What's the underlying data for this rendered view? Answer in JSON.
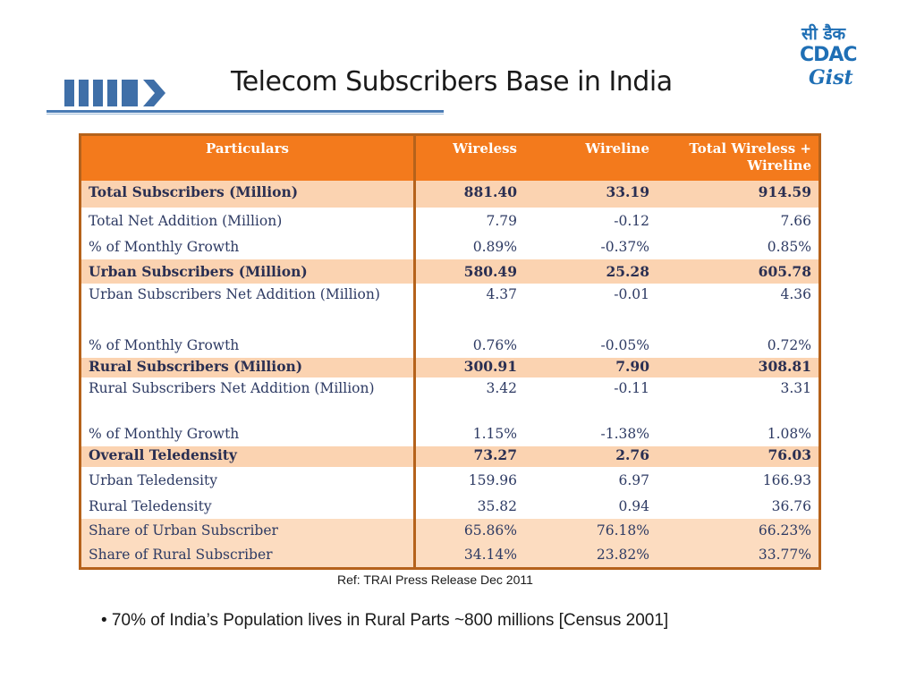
{
  "slide": {
    "title": "Telecom Subscribers Base in India",
    "ref": "Ref: TRAI Press Release Dec 2011",
    "bullet": "• 70% of India’s Population lives in Rural Parts ~800 millions [Census 2001]"
  },
  "logo": {
    "hindi": "सी डैक",
    "cdac": "CDAC",
    "gist": "Gist"
  },
  "table": {
    "headers": [
      "Particulars",
      "Wireless",
      "Wireline",
      "Total Wireless + Wireline"
    ],
    "rows": [
      {
        "label": "Total Subscribers (Million)",
        "wireless": "881.40",
        "wireline": "33.19",
        "total": "914.59"
      },
      {
        "label": "Total Net Addition (Million)",
        "wireless": "7.79",
        "wireline": "-0.12",
        "total": "7.66"
      },
      {
        "label": "% of Monthly Growth",
        "wireless": "0.89%",
        "wireline": "-0.37%",
        "total": "0.85%"
      },
      {
        "label": "Urban Subscribers (Million)",
        "wireless": "580.49",
        "wireline": "25.28",
        "total": "605.78"
      },
      {
        "label": "Urban Subscribers Net Addition (Million)",
        "wireless": "4.37",
        "wireline": "-0.01",
        "total": "4.36"
      },
      {
        "label": "% of Monthly Growth",
        "wireless": "0.76%",
        "wireline": "-0.05%",
        "total": "0.72%"
      },
      {
        "label": "Rural Subscribers (Million)",
        "wireless": "300.91",
        "wireline": "7.90",
        "total": "308.81"
      },
      {
        "label": "Rural Subscribers Net Addition (Million)",
        "wireless": "3.42",
        "wireline": "-0.11",
        "total": "3.31"
      },
      {
        "label": "% of Monthly Growth",
        "wireless": "1.15%",
        "wireline": "-1.38%",
        "total": "1.08%"
      },
      {
        "label": "Overall Teledensity",
        "wireless": "73.27",
        "wireline": "2.76",
        "total": "76.03"
      },
      {
        "label": "Urban Teledensity",
        "wireless": "159.96",
        "wireline": "6.97",
        "total": "166.93"
      },
      {
        "label": "Rural Teledensity",
        "wireless": "35.82",
        "wireline": "0.94",
        "total": "36.76"
      },
      {
        "label": "Share of Urban Subscriber",
        "wireless": "65.86%",
        "wireline": "76.18%",
        "total": "66.23%"
      },
      {
        "label": "Share of Rural Subscriber",
        "wireless": "34.14%",
        "wireline": "23.82%",
        "total": "33.77%"
      }
    ]
  },
  "colors": {
    "header_orange": "#f37a1c",
    "highlight_row": "#fbd3b1",
    "title_rule_blue": "#4a7cb5",
    "logo_blue": "#1f6fb5"
  }
}
